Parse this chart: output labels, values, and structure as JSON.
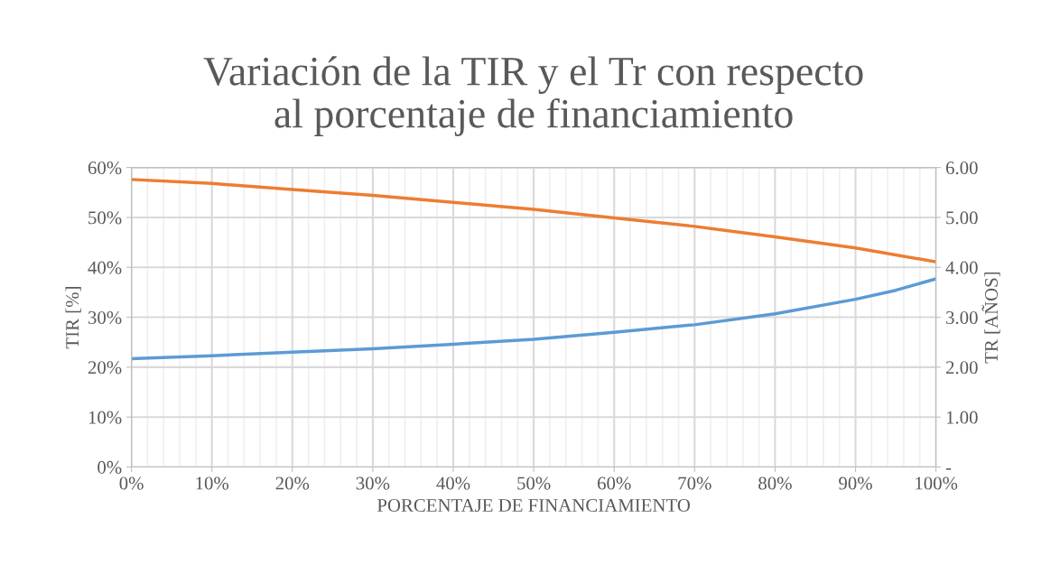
{
  "chart_data": {
    "type": "line",
    "title": "Variación de la TIR y el Tr con respecto\nal porcentaje de financiamiento",
    "xlabel": "PORCENTAJE DE FINANCIAMIENTO",
    "ylabel": "TIR [%]",
    "y2label": "TR [AÑOS]",
    "series": [
      {
        "color": "#5b9bd5",
        "x": [
          0,
          10,
          20,
          30,
          40,
          50,
          60,
          70,
          80,
          90,
          95,
          100
        ],
        "values": [
          21.7,
          22.3,
          23.0,
          23.7,
          24.6,
          25.6,
          27.0,
          28.5,
          30.7,
          33.6,
          35.4,
          37.7
        ]
      },
      {
        "color": "#ed7d31",
        "axis": "y2",
        "x": [
          0,
          10,
          20,
          30,
          40,
          50,
          60,
          70,
          80,
          90,
          100
        ],
        "values": [
          5.76,
          5.68,
          5.56,
          5.44,
          5.3,
          5.16,
          4.99,
          4.82,
          4.61,
          4.39,
          4.11
        ]
      }
    ],
    "xlim": [
      0,
      100
    ],
    "xticks": [
      {
        "value": 0,
        "label": "0%"
      },
      {
        "value": 10,
        "label": "10%"
      },
      {
        "value": 20,
        "label": "20%"
      },
      {
        "value": 30,
        "label": "30%"
      },
      {
        "value": 40,
        "label": "40%"
      },
      {
        "value": 50,
        "label": "50%"
      },
      {
        "value": 60,
        "label": "60%"
      },
      {
        "value": 70,
        "label": "70%"
      },
      {
        "value": 80,
        "label": "80%"
      },
      {
        "value": 90,
        "label": "90%"
      },
      {
        "value": 100,
        "label": "100%"
      }
    ],
    "ylim": [
      0,
      60
    ],
    "yticks": [
      {
        "value": 0,
        "label": "0%"
      },
      {
        "value": 10,
        "label": "10%"
      },
      {
        "value": 20,
        "label": "20%"
      },
      {
        "value": 30,
        "label": "30%"
      },
      {
        "value": 40,
        "label": "40%"
      },
      {
        "value": 50,
        "label": "50%"
      },
      {
        "value": 60,
        "label": "60%"
      }
    ],
    "y2lim": [
      0,
      6
    ],
    "y2ticks": [
      {
        "value": 0,
        "label": "-"
      },
      {
        "value": 1,
        "label": "1.00"
      },
      {
        "value": 2,
        "label": "2.00"
      },
      {
        "value": 3,
        "label": "3.00"
      },
      {
        "value": 4,
        "label": "4.00"
      },
      {
        "value": 5,
        "label": "5.00"
      },
      {
        "value": 6,
        "label": "6.00"
      }
    ],
    "grid": true,
    "marker": "none",
    "line_style": "solid"
  }
}
